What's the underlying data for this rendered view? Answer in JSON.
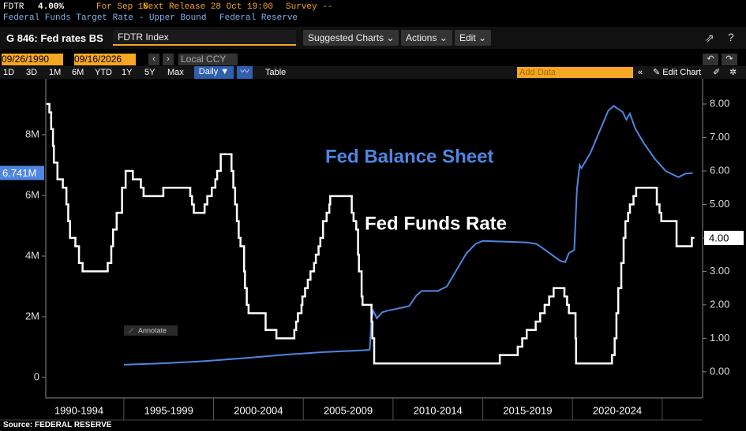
{
  "header": {
    "ticker": "FDTR",
    "value": "4.00%",
    "date": "For Sep 16",
    "next_release": "Next Release 28 Oct 19:00",
    "survey": "Survey --",
    "description": "Federal Funds Target Rate - Upper Bound",
    "source_org": "Federal Reserve"
  },
  "toolbar": {
    "chart_name": "G 846: Fed rates BS",
    "security": "FDTR Index",
    "buttons": [
      "Suggested Charts",
      "Actions",
      "Edit"
    ]
  },
  "controls": {
    "start_date": "09/26/1990",
    "end_date": "09/16/2026",
    "currency": "Local CCY",
    "ranges": [
      "1D",
      "3D",
      "1M",
      "6M",
      "YTD",
      "1Y",
      "5Y",
      "Max"
    ],
    "frequency": "Daily ▼",
    "table": "Table",
    "add_data": "Add Data",
    "edit_chart": "Edit Chart"
  },
  "annotate": "Annotate",
  "source": "Source: FEDERAL RESERVE",
  "chart_data": {
    "type": "line",
    "xlim": [
      1990.65,
      2027.25
    ],
    "xgrid": [
      1995,
      2000,
      2005,
      2010,
      2015,
      2020,
      2025
    ],
    "xticks": [
      {
        "value": 1992.5,
        "label": "1990-1994"
      },
      {
        "value": 1997.5,
        "label": "1995-1999"
      },
      {
        "value": 2002.5,
        "label": "2000-2004"
      },
      {
        "value": 2007.5,
        "label": "2005-2009"
      },
      {
        "value": 2012.5,
        "label": "2010-2014"
      },
      {
        "value": 2017.5,
        "label": "2015-2019"
      },
      {
        "value": 2022.5,
        "label": "2020-2024"
      }
    ],
    "ylim": [
      -675000,
      9455000
    ],
    "yticks": [
      0,
      {
        "value": 2000000,
        "label": "2M"
      },
      {
        "value": 4000000,
        "label": "4M"
      },
      {
        "value": 6000000,
        "label": "6M"
      },
      {
        "value": 8000000,
        "label": "8M"
      }
    ],
    "y2lim": [
      -0.78,
      8.4
    ],
    "y2ticks": [
      {
        "value": 0,
        "label": "0.00"
      },
      {
        "value": 1,
        "label": "1.00"
      },
      {
        "value": 2,
        "label": "2.00"
      },
      {
        "value": 3,
        "label": "3.00"
      },
      {
        "value": 4,
        "label": "4.00"
      },
      {
        "value": 5,
        "label": "5.00"
      },
      {
        "value": 6,
        "label": "6.00"
      },
      {
        "value": 7,
        "label": "7.00"
      },
      {
        "value": 8,
        "label": "8.00"
      }
    ],
    "grid": false,
    "series": [
      {
        "name": "Fed Balance Sheet",
        "color": "#4f86e0",
        "axis": "y",
        "x": [
          1995.0,
          1997.0,
          1999.0,
          2000.0,
          2002.0,
          2004.0,
          2006.0,
          2008.5,
          2008.7,
          2008.8,
          2008.9,
          2009.1,
          2009.4,
          2009.7,
          2010.5,
          2010.9,
          2011.3,
          2011.6,
          2012.5,
          2013.0,
          2013.6,
          2014.1,
          2014.6,
          2015.0,
          2017.5,
          2018.0,
          2018.6,
          2019.3,
          2019.6,
          2019.8,
          2020.1,
          2020.25,
          2020.4,
          2020.5,
          2021.0,
          2021.5,
          2022.0,
          2022.3,
          2022.8,
          2023.0,
          2023.2,
          2023.5,
          2024.0,
          2024.6,
          2025.2,
          2025.9,
          2026.3,
          2026.7
        ],
        "values": [
          420000,
          460000,
          520000,
          560000,
          650000,
          750000,
          830000,
          900000,
          920000,
          1900000,
          2200000,
          1950000,
          2150000,
          2200000,
          2300000,
          2350000,
          2700000,
          2850000,
          2850000,
          3000000,
          3600000,
          4100000,
          4400000,
          4500000,
          4450000,
          4400000,
          4150000,
          3850000,
          3800000,
          4100000,
          4200000,
          6200000,
          7000000,
          6900000,
          7400000,
          8100000,
          8800000,
          8950000,
          8750000,
          8500000,
          8700000,
          8200000,
          7700000,
          7200000,
          6800000,
          6600000,
          6720000,
          6741000
        ],
        "value_labels": [
          null,
          null,
          null,
          null,
          null,
          null,
          null,
          null,
          null,
          null,
          null,
          null,
          null,
          null,
          null,
          null,
          null,
          null,
          null,
          null,
          null,
          null,
          null,
          null,
          null,
          null,
          null,
          null,
          null,
          null,
          null,
          null,
          null,
          null,
          null,
          null,
          null,
          null,
          null,
          null,
          null,
          null,
          null,
          null,
          null,
          null,
          null,
          "6.741M"
        ]
      },
      {
        "name": "Fed Funds Rate",
        "color": "#ffffff",
        "axis": "y2",
        "step": "post",
        "x": [
          1990.74,
          1990.85,
          1990.95,
          1991.05,
          1991.1,
          1991.3,
          1991.6,
          1991.8,
          1991.9,
          1992.0,
          1992.3,
          1992.5,
          1992.7,
          1994.1,
          1994.3,
          1994.4,
          1994.6,
          1994.9,
          1995.1,
          1995.5,
          1995.95,
          1996.1,
          1997.2,
          1998.7,
          1998.8,
          1998.9,
          1999.5,
          1999.65,
          1999.9,
          2000.1,
          2000.2,
          2000.4,
          2001.0,
          2001.1,
          2001.2,
          2001.3,
          2001.4,
          2001.5,
          2001.7,
          2001.75,
          2001.85,
          2001.95,
          2002.9,
          2003.5,
          2004.5,
          2004.6,
          2004.7,
          2004.9,
          2004.95,
          2005.1,
          2005.25,
          2005.4,
          2005.6,
          2005.7,
          2005.85,
          2005.95,
          2006.1,
          2006.3,
          2006.45,
          2006.5,
          2007.7,
          2007.8,
          2007.95,
          2008.05,
          2008.1,
          2008.25,
          2008.3,
          2008.8,
          2008.85,
          2008.95,
          2015.95,
          2016.95,
          2017.2,
          2017.45,
          2017.95,
          2018.2,
          2018.45,
          2018.7,
          2018.95,
          2019.55,
          2019.7,
          2019.8,
          2020.17,
          2020.2,
          2022.2,
          2022.35,
          2022.45,
          2022.55,
          2022.72,
          2022.85,
          2022.95,
          2023.1,
          2023.2,
          2023.4,
          2023.55,
          2024.7,
          2024.85,
          2024.95,
          2025.8,
          2026.65
        ],
        "values": [
          8.0,
          7.75,
          7.25,
          6.75,
          6.25,
          5.75,
          5.5,
          5.0,
          4.5,
          4.0,
          3.75,
          3.25,
          3.0,
          3.25,
          3.75,
          4.25,
          4.75,
          5.5,
          6.0,
          5.75,
          5.5,
          5.25,
          5.5,
          5.25,
          5.0,
          4.75,
          5.0,
          5.25,
          5.5,
          5.75,
          6.0,
          6.5,
          6.0,
          5.5,
          5.0,
          4.5,
          4.0,
          3.75,
          3.0,
          2.5,
          2.0,
          1.75,
          1.25,
          1.0,
          1.25,
          1.5,
          1.75,
          2.0,
          2.25,
          2.5,
          2.75,
          3.0,
          3.25,
          3.5,
          3.75,
          4.0,
          4.5,
          4.75,
          5.0,
          5.25,
          4.75,
          4.5,
          4.25,
          3.5,
          3.0,
          2.25,
          2.0,
          1.5,
          1.0,
          0.25,
          0.5,
          0.75,
          1.0,
          1.25,
          1.5,
          1.75,
          2.0,
          2.25,
          2.5,
          2.25,
          2.0,
          1.75,
          1.0,
          0.25,
          0.5,
          1.0,
          1.75,
          2.5,
          3.25,
          4.0,
          4.5,
          4.75,
          5.0,
          5.25,
          5.5,
          5.0,
          4.75,
          4.5,
          3.75,
          4.0
        ],
        "value_labels": [
          null,
          null,
          null,
          null,
          null,
          null,
          null,
          null,
          null,
          null,
          null,
          null,
          null,
          null,
          null,
          null,
          null,
          null,
          null,
          null,
          null,
          null,
          null,
          null,
          null,
          null,
          null,
          null,
          null,
          null,
          null,
          null,
          null,
          null,
          null,
          null,
          null,
          null,
          null,
          null,
          null,
          null,
          null,
          null,
          null,
          null,
          null,
          null,
          null,
          null,
          null,
          null,
          null,
          null,
          null,
          null,
          null,
          null,
          null,
          null,
          null,
          null,
          null,
          null,
          null,
          null,
          null,
          null,
          null,
          null,
          null,
          null,
          null,
          null,
          null,
          null,
          null,
          null,
          null,
          null,
          null,
          null,
          null,
          null,
          null,
          null,
          null,
          null,
          null,
          null,
          null,
          null,
          null,
          null,
          null,
          null,
          null,
          null,
          null,
          "4.00"
        ]
      }
    ]
  }
}
